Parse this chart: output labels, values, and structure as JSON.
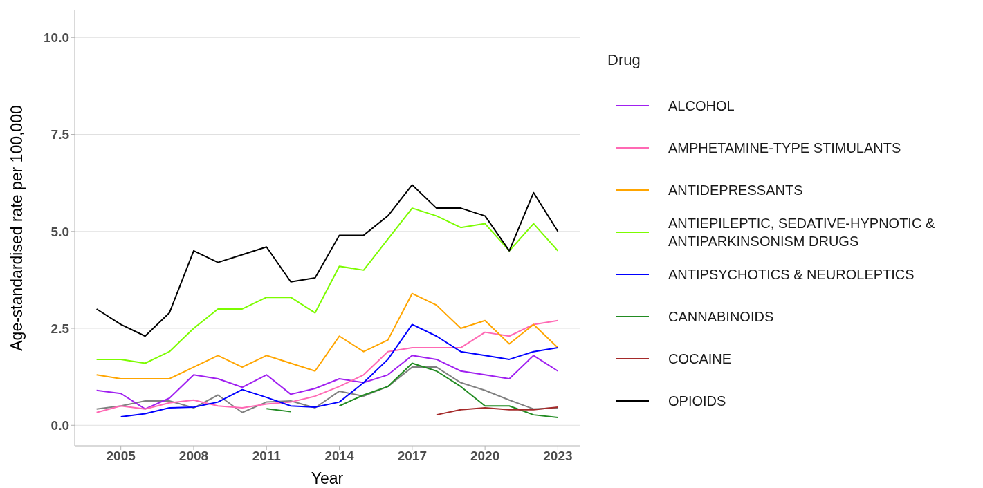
{
  "chart_data": {
    "type": "line",
    "xlabel": "Year",
    "ylabel": "Age-standardised rate per 100,000",
    "legend_title": "Drug",
    "legend": "right",
    "grid": "y",
    "x": [
      2004,
      2005,
      2006,
      2007,
      2008,
      2009,
      2010,
      2011,
      2012,
      2013,
      2014,
      2015,
      2016,
      2017,
      2018,
      2019,
      2020,
      2021,
      2022,
      2023
    ],
    "xlim": [
      2003.1,
      2023.9
    ],
    "xticks": [
      2005,
      2008,
      2011,
      2014,
      2017,
      2020,
      2023
    ],
    "ylim": [
      -0.53,
      10.7
    ],
    "yticks": [
      {
        "value": 0,
        "label": "0.0"
      },
      {
        "value": 2.5,
        "label": "2.5"
      },
      {
        "value": 5,
        "label": "5.0"
      },
      {
        "value": 7.5,
        "label": "7.5"
      },
      {
        "value": 10,
        "label": "10.0"
      }
    ],
    "series": [
      {
        "name": null,
        "color": "#808080",
        "values": [
          0.42,
          0.5,
          0.63,
          0.63,
          0.45,
          0.78,
          0.33,
          0.6,
          0.63,
          0.45,
          0.88,
          0.75,
          1.0,
          1.5,
          1.5,
          1.1,
          0.9,
          0.65,
          0.42,
          0.45
        ]
      },
      {
        "name": "ALCOHOL",
        "color": "#a020f0",
        "values": [
          0.9,
          0.82,
          0.42,
          0.7,
          1.3,
          1.2,
          0.98,
          1.3,
          0.8,
          0.95,
          1.2,
          1.1,
          1.3,
          1.8,
          1.7,
          1.4,
          1.3,
          1.2,
          1.8,
          1.4
        ]
      },
      {
        "name": "AMPHETAMINE-TYPE STIMULANTS",
        "color": "#ff69b4",
        "values": [
          0.33,
          0.5,
          0.42,
          0.58,
          0.65,
          0.5,
          0.45,
          0.55,
          0.6,
          0.75,
          1.0,
          1.3,
          1.9,
          2.0,
          2.0,
          2.0,
          2.4,
          2.3,
          2.6,
          2.7
        ]
      },
      {
        "name": "ANTIDEPRESSANTS",
        "color": "#ffa500",
        "values": [
          1.3,
          1.2,
          1.2,
          1.2,
          1.5,
          1.8,
          1.5,
          1.8,
          1.6,
          1.4,
          2.3,
          1.9,
          2.2,
          3.4,
          3.1,
          2.5,
          2.7,
          2.1,
          2.6,
          2.0
        ]
      },
      {
        "name": "ANTIEPILEPTIC, SEDATIVE-HYPNOTIC & ANTIPARKINSONISM DRUGS",
        "color": "#7cfc00",
        "values": [
          1.7,
          1.7,
          1.6,
          1.9,
          2.5,
          3.0,
          3.0,
          3.3,
          3.3,
          2.9,
          4.1,
          4.0,
          4.8,
          5.6,
          5.4,
          5.1,
          5.2,
          4.5,
          5.2,
          4.5
        ]
      },
      {
        "name": "ANTIPSYCHOTICS & NEUROLEPTICS",
        "color": "#0000ff",
        "values": [
          null,
          0.22,
          0.3,
          0.45,
          0.47,
          0.6,
          0.92,
          0.72,
          0.5,
          0.47,
          0.6,
          1.1,
          1.7,
          2.6,
          2.3,
          1.9,
          1.8,
          1.7,
          1.9,
          2.0
        ]
      },
      {
        "name": "CANNABINOIDS",
        "color": "#228b22",
        "values": [
          null,
          null,
          null,
          null,
          null,
          null,
          null,
          0.43,
          0.35,
          null,
          0.5,
          0.78,
          1.0,
          1.6,
          1.4,
          1.0,
          0.5,
          0.5,
          0.27,
          0.2
        ]
      },
      {
        "name": "COCAINE",
        "color": "#a52a2a",
        "values": [
          null,
          null,
          null,
          null,
          null,
          null,
          null,
          null,
          null,
          null,
          null,
          null,
          null,
          null,
          0.27,
          0.4,
          0.45,
          0.4,
          0.4,
          0.47
        ]
      },
      {
        "name": "OPIOIDS",
        "color": "#000000",
        "values": [
          3.0,
          2.6,
          2.3,
          2.9,
          4.5,
          4.2,
          4.4,
          4.6,
          3.7,
          3.8,
          4.9,
          4.9,
          5.4,
          6.2,
          5.6,
          5.6,
          5.4,
          4.5,
          6.0,
          5.0
        ]
      }
    ]
  }
}
